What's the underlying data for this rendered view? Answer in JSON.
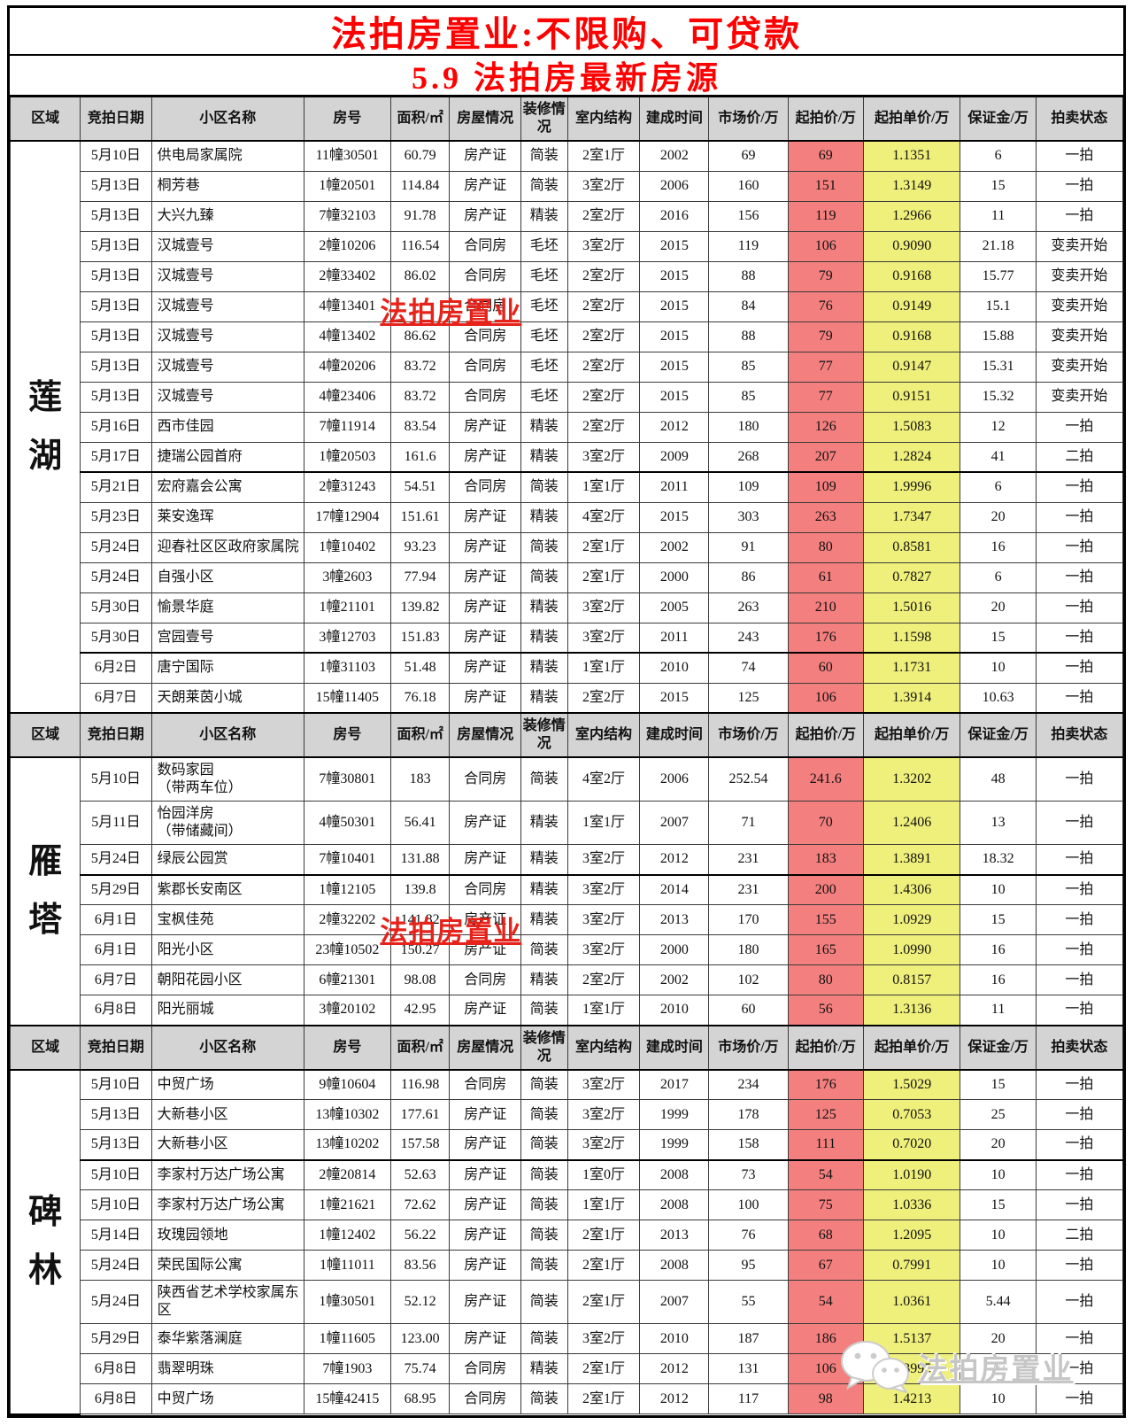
{
  "titles": {
    "line1": "法拍房置业:不限购、可贷款",
    "line2": "5.9  法拍房最新房源"
  },
  "watermarks": {
    "red_text": "法拍房置业",
    "gray_text": "法拍房置业",
    "gray_icon": "wechat-bubbles-icon"
  },
  "colors": {
    "title_red": "#fe0000",
    "start_price_bg": "#f47f7f",
    "unit_price_bg": "#efef7b",
    "header_bg": "#d4d4d4",
    "watermark_red": "#e5231b",
    "watermark_gray": "#c6c6c6"
  },
  "table": {
    "headers": [
      "区域",
      "竞拍日期",
      "小区名称",
      "房号",
      "面积/㎡",
      "房屋情况",
      "装修情况",
      "室内结构",
      "建成时间",
      "市场价/万",
      "起拍价/万",
      "起拍单价/万",
      "保证金/万",
      "拍卖状态"
    ],
    "column_keys": [
      "date",
      "community",
      "unit-no",
      "area",
      "housing-cert",
      "decoration",
      "layout",
      "year-built",
      "market-price",
      "start-price",
      "start-unit-price",
      "deposit",
      "auction-status"
    ],
    "sections": [
      {
        "region": "莲湖",
        "rows": [
          [
            "5月10日",
            "供电局家属院",
            "11幢30501",
            "60.79",
            "房产证",
            "简装",
            "2室1厅",
            "2002",
            "69",
            "69",
            "1.1351",
            "6",
            "一拍"
          ],
          [
            "5月13日",
            "桐芳巷",
            "1幢20501",
            "114.84",
            "房产证",
            "简装",
            "3室2厅",
            "2006",
            "160",
            "151",
            "1.3149",
            "15",
            "一拍"
          ],
          [
            "5月13日",
            "大兴九臻",
            "7幢32103",
            "91.78",
            "房产证",
            "精装",
            "2室2厅",
            "2016",
            "156",
            "119",
            "1.2966",
            "11",
            "一拍"
          ],
          [
            "5月13日",
            "汉城壹号",
            "2幢10206",
            "116.54",
            "合同房",
            "毛坯",
            "3室2厅",
            "2015",
            "119",
            "106",
            "0.9090",
            "21.18",
            "变卖开始"
          ],
          [
            "5月13日",
            "汉城壹号",
            "2幢33402",
            "86.02",
            "合同房",
            "毛坯",
            "2室2厅",
            "2015",
            "88",
            "79",
            "0.9168",
            "15.77",
            "变卖开始"
          ],
          [
            "5月13日",
            "汉城壹号",
            "4幢13401",
            "",
            "合同房",
            "毛坯",
            "2室2厅",
            "2015",
            "84",
            "76",
            "0.9149",
            "15.1",
            "变卖开始"
          ],
          [
            "5月13日",
            "汉城壹号",
            "4幢13402",
            "86.62",
            "合同房",
            "毛坯",
            "2室2厅",
            "2015",
            "88",
            "79",
            "0.9168",
            "15.88",
            "变卖开始"
          ],
          [
            "5月13日",
            "汉城壹号",
            "4幢20206",
            "83.72",
            "合同房",
            "毛坯",
            "2室2厅",
            "2015",
            "85",
            "77",
            "0.9147",
            "15.31",
            "变卖开始"
          ],
          [
            "5月13日",
            "汉城壹号",
            "4幢23406",
            "83.72",
            "合同房",
            "毛坯",
            "2室2厅",
            "2015",
            "85",
            "77",
            "0.9151",
            "15.32",
            "变卖开始"
          ],
          [
            "5月16日",
            "西市佳园",
            "7幢11914",
            "83.54",
            "房产证",
            "精装",
            "2室2厅",
            "2012",
            "180",
            "126",
            "1.5083",
            "12",
            "一拍"
          ],
          [
            "5月17日",
            "捷瑞公园首府",
            "1幢20503",
            "161.6",
            "房产证",
            "精装",
            "3室2厅",
            "2009",
            "268",
            "207",
            "1.2824",
            "41",
            "二拍"
          ],
          [
            "5月21日",
            "宏府嘉会公寓",
            "2幢31243",
            "54.51",
            "合同房",
            "简装",
            "1室1厅",
            "2011",
            "109",
            "109",
            "1.9996",
            "6",
            "一拍"
          ],
          [
            "5月23日",
            "莱安逸珲",
            "17幢12904",
            "151.61",
            "房产证",
            "精装",
            "4室2厅",
            "2015",
            "303",
            "263",
            "1.7347",
            "20",
            "一拍"
          ],
          [
            "5月24日",
            "迎春社区区政府家属院",
            "1幢10402",
            "93.23",
            "房产证",
            "简装",
            "2室1厅",
            "2002",
            "91",
            "80",
            "0.8581",
            "16",
            "一拍"
          ],
          [
            "5月24日",
            "自强小区",
            "3幢2603",
            "77.94",
            "房产证",
            "简装",
            "2室1厅",
            "2000",
            "86",
            "61",
            "0.7827",
            "6",
            "一拍"
          ],
          [
            "5月30日",
            "愉景华庭",
            "1幢21101",
            "139.82",
            "房产证",
            "精装",
            "3室2厅",
            "2005",
            "263",
            "210",
            "1.5016",
            "20",
            "一拍"
          ],
          [
            "5月30日",
            "宫园壹号",
            "3幢12703",
            "151.83",
            "房产证",
            "精装",
            "3室2厅",
            "2011",
            "243",
            "176",
            "1.1598",
            "15",
            "一拍"
          ],
          [
            "6月2日",
            "唐宁国际",
            "1幢31103",
            "51.48",
            "房产证",
            "精装",
            "1室1厅",
            "2010",
            "74",
            "60",
            "1.1731",
            "10",
            "一拍"
          ],
          [
            "6月7日",
            "天朗莱茵小城",
            "15幢11405",
            "76.18",
            "房产证",
            "精装",
            "2室2厅",
            "2015",
            "125",
            "106",
            "1.3914",
            "10.63",
            "一拍"
          ]
        ]
      },
      {
        "region": "雁塔",
        "rows": [
          [
            "5月10日",
            "数码家园\n（带两车位）",
            "7幢30801",
            "183",
            "合同房",
            "简装",
            "4室2厅",
            "2006",
            "252.54",
            "241.6",
            "1.3202",
            "48",
            "一拍"
          ],
          [
            "5月11日",
            "怡园洋房\n（带储藏间）",
            "4幢50301",
            "56.41",
            "房产证",
            "精装",
            "1室1厅",
            "2007",
            "71",
            "70",
            "1.2406",
            "13",
            "一拍"
          ],
          [
            "5月24日",
            "绿辰公园赏",
            "7幢10401",
            "131.88",
            "房产证",
            "精装",
            "3室2厅",
            "2012",
            "231",
            "183",
            "1.3891",
            "18.32",
            "一拍"
          ],
          [
            "5月29日",
            "紫郡长安南区",
            "1幢12105",
            "139.8",
            "合同房",
            "精装",
            "3室2厅",
            "2014",
            "231",
            "200",
            "1.4306",
            "10",
            "一拍"
          ],
          [
            "6月1日",
            "宝枫佳苑",
            "2幢32202",
            "141.82",
            "房产证",
            "精装",
            "3室2厅",
            "2013",
            "170",
            "155",
            "1.0929",
            "15",
            "一拍"
          ],
          [
            "6月1日",
            "阳光小区",
            "23幢10502",
            "150.27",
            "房产证",
            "简装",
            "3室2厅",
            "2000",
            "180",
            "165",
            "1.0990",
            "16",
            "一拍"
          ],
          [
            "6月7日",
            "朝阳花园小区",
            "6幢21301",
            "98.08",
            "合同房",
            "精装",
            "2室2厅",
            "2002",
            "102",
            "80",
            "0.8157",
            "16",
            "一拍"
          ],
          [
            "6月8日",
            "阳光丽城",
            "3幢20102",
            "42.95",
            "房产证",
            "简装",
            "1室1厅",
            "2010",
            "60",
            "56",
            "1.3136",
            "11",
            "一拍"
          ]
        ]
      },
      {
        "region": "碑林",
        "rows": [
          [
            "5月10日",
            "中贸广场",
            "9幢10604",
            "116.98",
            "合同房",
            "简装",
            "3室2厅",
            "2017",
            "234",
            "176",
            "1.5029",
            "15",
            "一拍"
          ],
          [
            "5月13日",
            "大新巷小区",
            "13幢10302",
            "177.61",
            "房产证",
            "简装",
            "3室2厅",
            "1999",
            "178",
            "125",
            "0.7053",
            "25",
            "一拍"
          ],
          [
            "5月13日",
            "大新巷小区",
            "13幢10202",
            "157.58",
            "房产证",
            "简装",
            "3室2厅",
            "1999",
            "158",
            "111",
            "0.7020",
            "20",
            "一拍"
          ],
          [
            "5月10日",
            "李家村万达广场公寓",
            "2幢20814",
            "52.63",
            "房产证",
            "简装",
            "1室0厅",
            "2008",
            "73",
            "54",
            "1.0190",
            "10",
            "一拍"
          ],
          [
            "5月10日",
            "李家村万达广场公寓",
            "1幢21621",
            "72.62",
            "房产证",
            "简装",
            "1室1厅",
            "2008",
            "100",
            "75",
            "1.0336",
            "15",
            "一拍"
          ],
          [
            "5月14日",
            "玫瑰园领地",
            "1幢12402",
            "56.22",
            "房产证",
            "简装",
            "2室1厅",
            "2013",
            "76",
            "68",
            "1.2095",
            "10",
            "二拍"
          ],
          [
            "5月24日",
            "荣民国际公寓",
            "1幢11011",
            "83.56",
            "房产证",
            "简装",
            "2室1厅",
            "2008",
            "95",
            "67",
            "0.7991",
            "10",
            "一拍"
          ],
          [
            "5月24日",
            "陕西省艺术学校家属东区",
            "1幢30501",
            "52.12",
            "房产证",
            "简装",
            "2室1厅",
            "2007",
            "55",
            "54",
            "1.0361",
            "5.44",
            "一拍"
          ],
          [
            "5月29日",
            "泰华紫落澜庭",
            "1幢11605",
            "123.00",
            "房产证",
            "简装",
            "3室2厅",
            "2010",
            "187",
            "186",
            "1.5137",
            "20",
            "一拍"
          ],
          [
            "6月8日",
            "翡翠明珠",
            "7幢1903",
            "75.74",
            "合同房",
            "精装",
            "2室1厅",
            "2012",
            "131",
            "106",
            "1.3995",
            "10",
            "一拍"
          ],
          [
            "6月8日",
            "中贸广场",
            "15幢42415",
            "68.95",
            "合同房",
            "简装",
            "2室1厅",
            "2012",
            "117",
            "98",
            "1.4213",
            "10",
            "一拍"
          ]
        ]
      }
    ]
  }
}
